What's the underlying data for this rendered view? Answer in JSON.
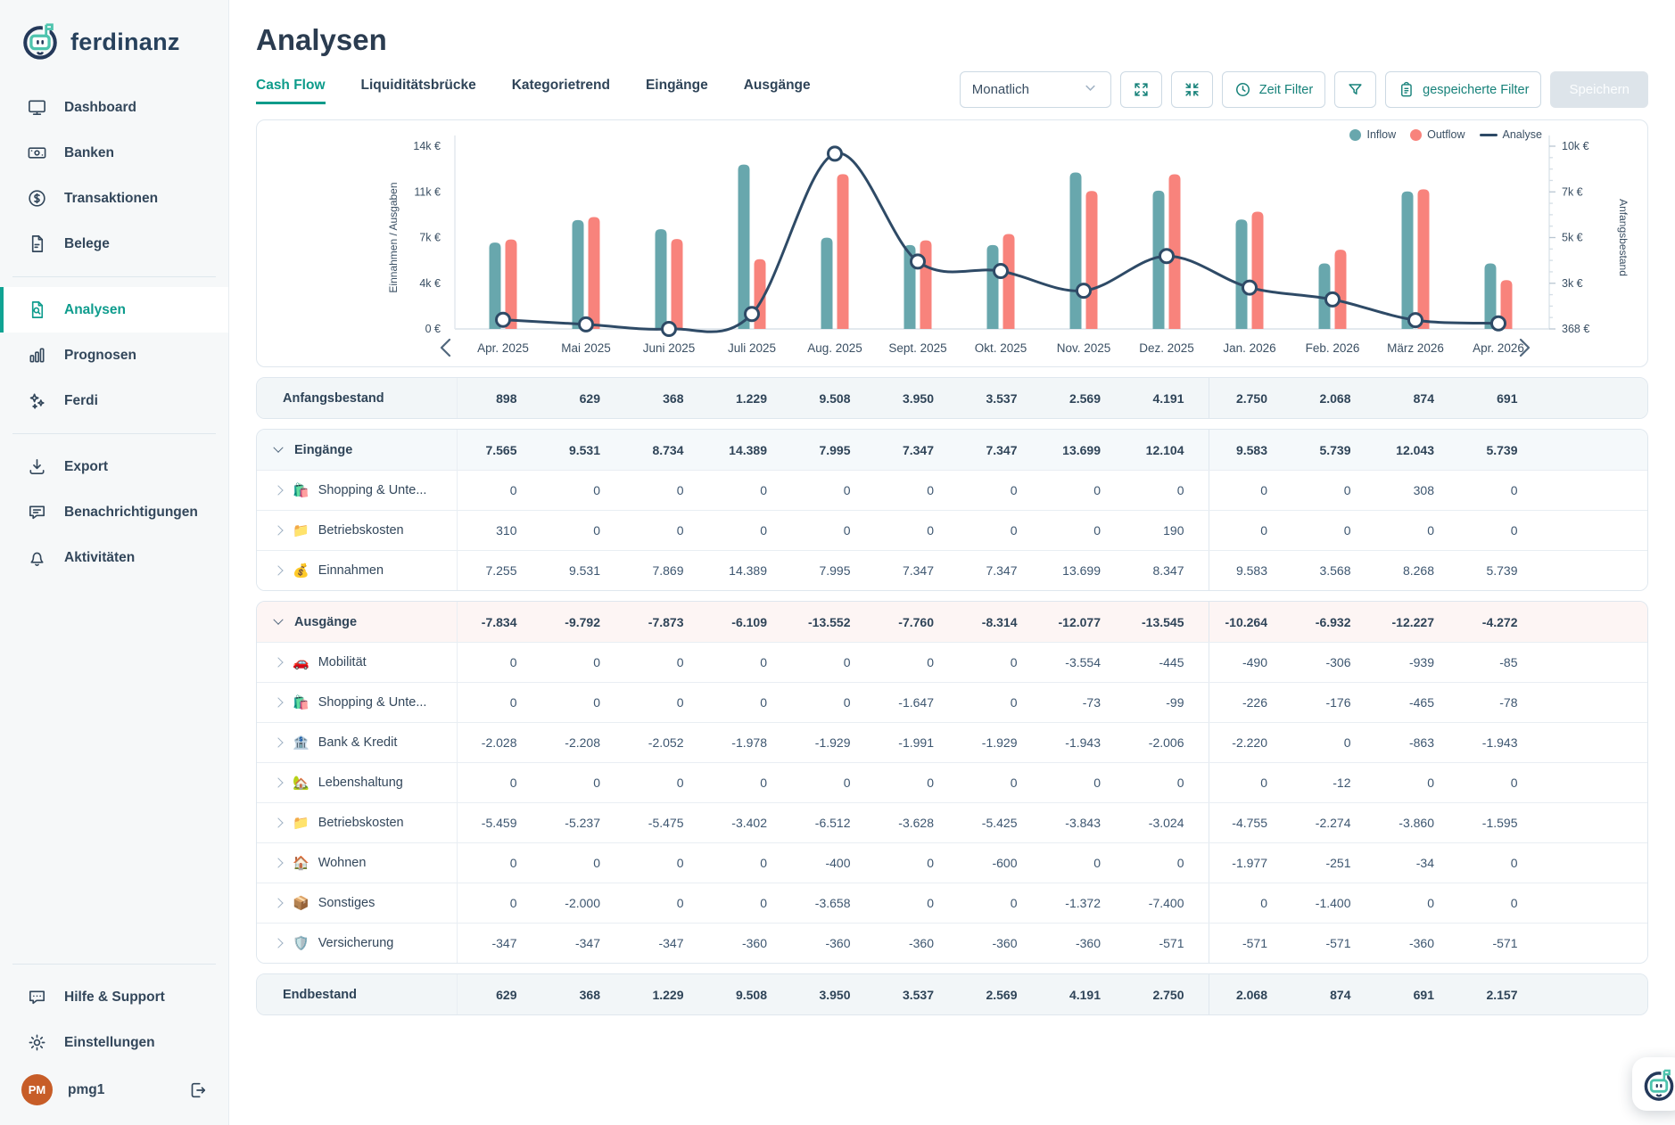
{
  "app": {
    "logo_text": "ferdinanz",
    "accent": "#0e9c8d",
    "navy": "#2e4a66"
  },
  "sidebar": {
    "groups": [
      [
        {
          "id": "dashboard",
          "icon": "monitor-icon",
          "label": "Dashboard"
        },
        {
          "id": "banken",
          "icon": "banknote-icon",
          "label": "Banken"
        },
        {
          "id": "transaktionen",
          "icon": "dollar-circle-icon",
          "label": "Transaktionen"
        },
        {
          "id": "belege",
          "icon": "document-icon",
          "label": "Belege"
        }
      ],
      [
        {
          "id": "analysen",
          "icon": "file-search-icon",
          "label": "Analysen",
          "active": true
        },
        {
          "id": "prognosen",
          "icon": "bar-chart-icon",
          "label": "Prognosen"
        },
        {
          "id": "ferdi",
          "icon": "sparkles-icon",
          "label": "Ferdi"
        }
      ],
      [
        {
          "id": "export",
          "icon": "download-icon",
          "label": "Export"
        },
        {
          "id": "benachrichtigungen",
          "icon": "message-icon",
          "label": "Benachrichtigungen"
        },
        {
          "id": "aktivitaeten",
          "icon": "bell-icon",
          "label": "Aktivitäten"
        }
      ]
    ],
    "footer": [
      {
        "id": "hilfe",
        "icon": "help-chat-icon",
        "label": "Hilfe & Support"
      },
      {
        "id": "einstellungen",
        "icon": "gear-icon",
        "label": "Einstellungen"
      }
    ],
    "user": {
      "initials": "PM",
      "name": "pmg1"
    }
  },
  "header": {
    "title": "Analysen",
    "tabs": [
      {
        "label": "Cash Flow",
        "active": true
      },
      {
        "label": "Liquiditätsbrücke"
      },
      {
        "label": "Kategorietrend"
      },
      {
        "label": "Eingänge"
      },
      {
        "label": "Ausgänge"
      }
    ],
    "toolbar": {
      "period_value": "Monatlich",
      "zeit_filter_label": "Zeit Filter",
      "saved_filter_label": "gespeicherte Filter",
      "save_label": "Speichern"
    }
  },
  "chart_data": {
    "type": "bar+line",
    "categories": [
      "Apr. 2025",
      "Mai 2025",
      "Juni 2025",
      "Juli 2025",
      "Aug. 2025",
      "Sept. 2025",
      "Okt. 2025",
      "Nov. 2025",
      "Dez. 2025",
      "Jan. 2026",
      "Feb. 2026",
      "März 2026",
      "Apr. 2026"
    ],
    "series": [
      {
        "name": "Inflow",
        "type": "bar",
        "color": "#68a7ad",
        "values": [
          7565,
          9531,
          8734,
          14389,
          7995,
          7347,
          7347,
          13699,
          12104,
          9583,
          5739,
          12043,
          5739
        ]
      },
      {
        "name": "Outflow",
        "type": "bar",
        "color": "#f8837c",
        "values": [
          7834,
          9792,
          7873,
          6109,
          13552,
          7760,
          8314,
          12077,
          13545,
          10264,
          6932,
          12227,
          4272
        ]
      },
      {
        "name": "Analyse",
        "type": "line",
        "color": "#2e4a66",
        "values": [
          898,
          629,
          368,
          1229,
          9508,
          3950,
          3537,
          2569,
          4191,
          2750,
          2068,
          874,
          691
        ]
      }
    ],
    "left_axis": {
      "label": "Einnahmen / Ausgaben",
      "ticks": [
        "14k €",
        "11k €",
        "7k €",
        "4k €",
        "0 €"
      ],
      "max": 16000
    },
    "right_axis": {
      "label": "Anfangsbestand",
      "ticks": [
        "10k €",
        "7k €",
        "5k €",
        "3k €",
        "368 €"
      ],
      "tick_values": [
        10000,
        7000,
        5000,
        3000,
        368
      ]
    },
    "legend": [
      "Inflow",
      "Outflow",
      "Analyse"
    ],
    "grid": false,
    "legend_position": "top-right"
  },
  "table": {
    "year_divider_col": 9,
    "cards": [
      {
        "rows": [
          {
            "label": "Anfangsbestand",
            "kind": "summary",
            "values": [
              "898",
              "629",
              "368",
              "1.229",
              "9.508",
              "3.950",
              "3.537",
              "2.569",
              "4.191",
              "2.750",
              "2.068",
              "874",
              "691"
            ]
          }
        ]
      },
      {
        "rows": [
          {
            "label": "Eingänge",
            "kind": "section-in",
            "values": [
              "7.565",
              "9.531",
              "8.734",
              "14.389",
              "7.995",
              "7.347",
              "7.347",
              "13.699",
              "12.104",
              "9.583",
              "5.739",
              "12.043",
              "5.739"
            ]
          },
          {
            "label": "Shopping & Unte...",
            "icon": "🛍️",
            "kind": "category",
            "values": [
              "0",
              "0",
              "0",
              "0",
              "0",
              "0",
              "0",
              "0",
              "0",
              "0",
              "0",
              "308",
              "0"
            ]
          },
          {
            "label": "Betriebskosten",
            "icon": "📁",
            "kind": "category",
            "values": [
              "310",
              "0",
              "0",
              "0",
              "0",
              "0",
              "0",
              "0",
              "190",
              "0",
              "0",
              "0",
              "0"
            ]
          },
          {
            "label": "Einnahmen",
            "icon": "💰",
            "kind": "category",
            "values": [
              "7.255",
              "9.531",
              "7.869",
              "14.389",
              "7.995",
              "7.347",
              "7.347",
              "13.699",
              "8.347",
              "9.583",
              "3.568",
              "8.268",
              "5.739"
            ]
          }
        ]
      },
      {
        "rows": [
          {
            "label": "Ausgänge",
            "kind": "section-out",
            "values": [
              "-7.834",
              "-9.792",
              "-7.873",
              "-6.109",
              "-13.552",
              "-7.760",
              "-8.314",
              "-12.077",
              "-13.545",
              "-10.264",
              "-6.932",
              "-12.227",
              "-4.272"
            ]
          },
          {
            "label": "Mobilität",
            "icon": "🚗",
            "kind": "category",
            "values": [
              "0",
              "0",
              "0",
              "0",
              "0",
              "0",
              "0",
              "-3.554",
              "-445",
              "-490",
              "-306",
              "-939",
              "-85"
            ]
          },
          {
            "label": "Shopping & Unte...",
            "icon": "🛍️",
            "kind": "category",
            "values": [
              "0",
              "0",
              "0",
              "0",
              "0",
              "-1.647",
              "0",
              "-73",
              "-99",
              "-226",
              "-176",
              "-465",
              "-78"
            ]
          },
          {
            "label": "Bank & Kredit",
            "icon": "🏦",
            "kind": "category",
            "values": [
              "-2.028",
              "-2.208",
              "-2.052",
              "-1.978",
              "-1.929",
              "-1.991",
              "-1.929",
              "-1.943",
              "-2.006",
              "-2.220",
              "0",
              "-863",
              "-1.943"
            ]
          },
          {
            "label": "Lebenshaltung",
            "icon": "🏡",
            "kind": "category",
            "values": [
              "0",
              "0",
              "0",
              "0",
              "0",
              "0",
              "0",
              "0",
              "0",
              "0",
              "-12",
              "0",
              "0"
            ]
          },
          {
            "label": "Betriebskosten",
            "icon": "📁",
            "kind": "category",
            "values": [
              "-5.459",
              "-5.237",
              "-5.475",
              "-3.402",
              "-6.512",
              "-3.628",
              "-5.425",
              "-3.843",
              "-3.024",
              "-4.755",
              "-2.274",
              "-3.860",
              "-1.595"
            ]
          },
          {
            "label": "Wohnen",
            "icon": "🏠",
            "kind": "category",
            "values": [
              "0",
              "0",
              "0",
              "0",
              "-400",
              "0",
              "-600",
              "0",
              "0",
              "-1.977",
              "-251",
              "-34",
              "0"
            ]
          },
          {
            "label": "Sonstiges",
            "icon": "📦",
            "kind": "category",
            "values": [
              "0",
              "-2.000",
              "0",
              "0",
              "-3.658",
              "0",
              "0",
              "-1.372",
              "-7.400",
              "0",
              "-1.400",
              "0",
              "0"
            ]
          },
          {
            "label": "Versicherung",
            "icon": "🛡️",
            "kind": "category",
            "values": [
              "-347",
              "-347",
              "-347",
              "-360",
              "-360",
              "-360",
              "-360",
              "-360",
              "-571",
              "-571",
              "-571",
              "-360",
              "-571"
            ]
          }
        ]
      },
      {
        "rows": [
          {
            "label": "Endbestand",
            "kind": "summary",
            "values": [
              "629",
              "368",
              "1.229",
              "9.508",
              "3.950",
              "3.537",
              "2.569",
              "4.191",
              "2.750",
              "2.068",
              "874",
              "691",
              "2.157"
            ]
          }
        ]
      }
    ]
  }
}
